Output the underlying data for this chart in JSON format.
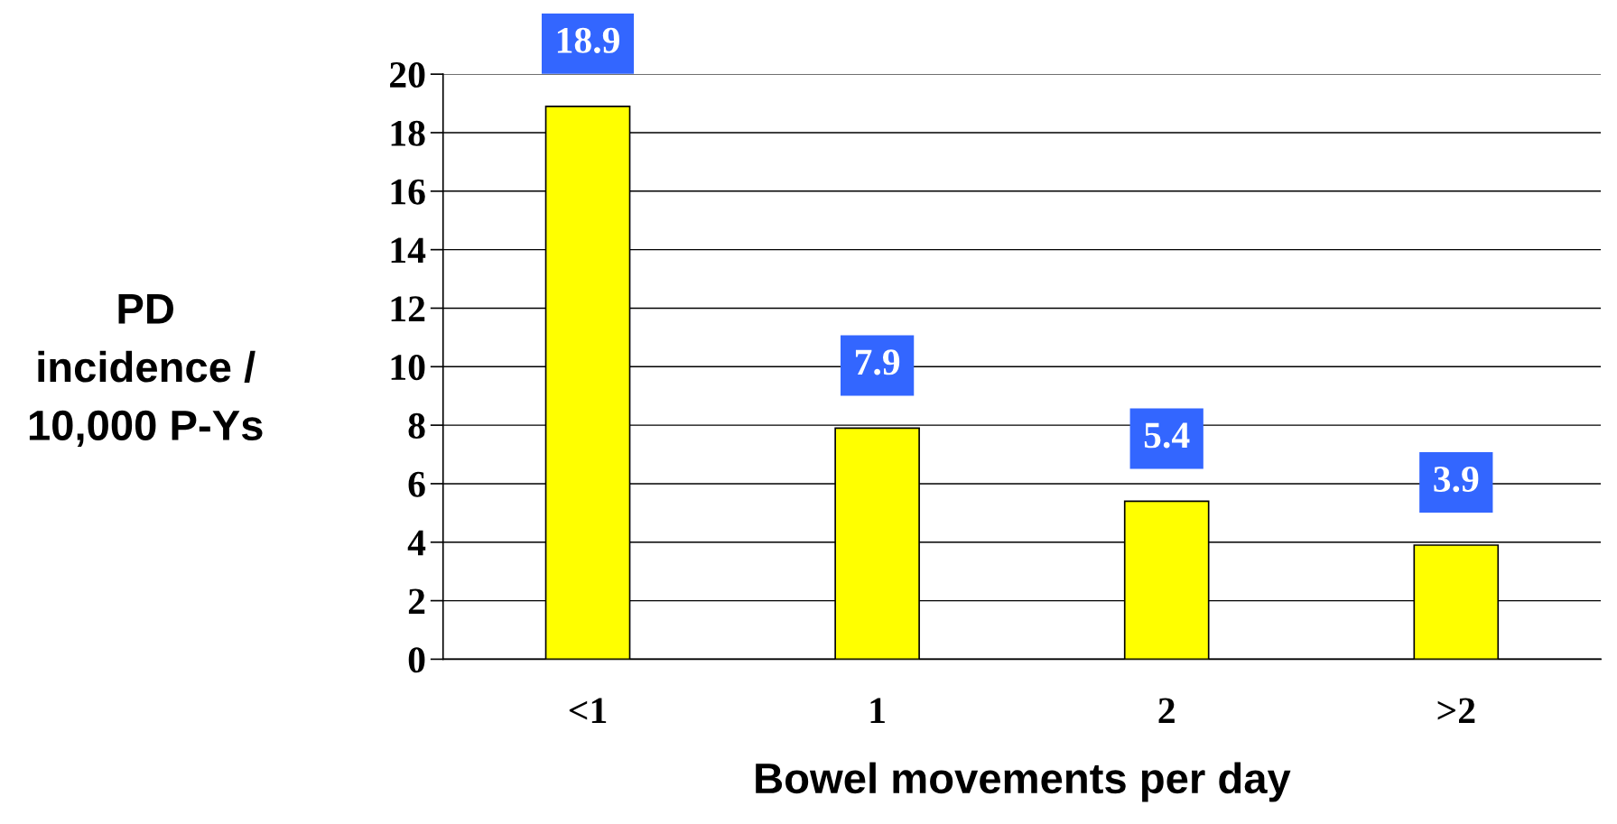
{
  "chart_data": {
    "type": "bar",
    "xlabel": "Bowel movements per day",
    "ylabel": "PD\nincidence /\n10,000 P-Ys",
    "categories": [
      "<1",
      "1",
      "2",
      ">2"
    ],
    "values": [
      18.9,
      7.9,
      5.4,
      3.9
    ],
    "color": "#ffff00",
    "ylim": [
      0,
      20
    ],
    "yticks": [
      0,
      2,
      4,
      6,
      8,
      10,
      12,
      14,
      16,
      18,
      20
    ],
    "grid": "y",
    "data_labels": true
  }
}
